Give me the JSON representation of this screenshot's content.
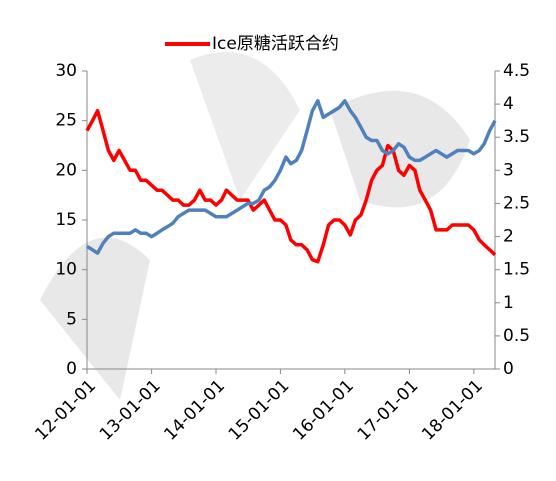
{
  "chart_data": {
    "type": "line",
    "legend": "top",
    "x": [
      "12-01-01",
      "12-02-01",
      "12-03-01",
      "12-04-01",
      "12-05-01",
      "12-06-01",
      "12-07-01",
      "12-08-01",
      "12-09-01",
      "12-10-01",
      "12-11-01",
      "12-12-01",
      "13-01-01",
      "13-02-01",
      "13-03-01",
      "13-04-01",
      "13-05-01",
      "13-06-01",
      "13-07-01",
      "13-08-01",
      "13-09-01",
      "13-10-01",
      "13-11-01",
      "13-12-01",
      "14-01-01",
      "14-02-01",
      "14-03-01",
      "14-04-01",
      "14-05-01",
      "14-06-01",
      "14-07-01",
      "14-08-01",
      "14-09-01",
      "14-10-01",
      "14-11-01",
      "14-12-01",
      "15-01-01",
      "15-02-01",
      "15-03-01",
      "15-04-01",
      "15-05-01",
      "15-06-01",
      "15-07-01",
      "15-08-01",
      "15-09-01",
      "15-10-01",
      "15-11-01",
      "15-12-01",
      "16-01-01",
      "16-02-01",
      "16-03-01",
      "16-04-01",
      "16-05-01",
      "16-06-01",
      "16-07-01",
      "16-08-01",
      "16-09-01",
      "16-10-01",
      "16-11-01",
      "16-12-01",
      "17-01-01",
      "17-02-01",
      "17-03-01",
      "17-04-01",
      "17-05-01",
      "17-06-01",
      "17-07-01",
      "17-08-01",
      "17-09-01",
      "17-10-01",
      "17-11-01",
      "17-12-01",
      "18-01-01",
      "18-02-01",
      "18-03-01",
      "18-04-01",
      "18-05-01"
    ],
    "xticks": [
      "12-01-01",
      "13-01-01",
      "14-01-01",
      "15-01-01",
      "16-01-01",
      "17-01-01",
      "18-01-01"
    ],
    "xlim": [
      "12-01-01",
      "18-05-01"
    ],
    "ylim": [
      0,
      30
    ],
    "yticks": [
      0,
      5,
      10,
      15,
      20,
      25,
      30
    ],
    "y2lim": [
      0,
      4.5
    ],
    "y2ticks": [
      0,
      0.5,
      1,
      1.5,
      2,
      2.5,
      3,
      3.5,
      4,
      4.5
    ],
    "series": [
      {
        "name": "Ice原糖活跃合约",
        "color": "#ff0000",
        "values": [
          24,
          25,
          26,
          24,
          22,
          21,
          22,
          21,
          20,
          20,
          19,
          19,
          18.5,
          18,
          18,
          17.5,
          17,
          17,
          16.5,
          16.5,
          17,
          18,
          17,
          17,
          16.5,
          17,
          18,
          17.5,
          17,
          17,
          17,
          16,
          16.5,
          17,
          16,
          15,
          15,
          14.5,
          13,
          12.5,
          12.5,
          12,
          11,
          10.8,
          12.5,
          14.5,
          15,
          15,
          14.5,
          13.5,
          15,
          15.5,
          17,
          19,
          20,
          20.5,
          22.5,
          22,
          20,
          19.5,
          20.5,
          20,
          18,
          17,
          16,
          14,
          14,
          14,
          14.5,
          14.5,
          14.5,
          14.5,
          14,
          13,
          12.5,
          12,
          11.5
        ]
      },
      {
        "color": "#4f81bd",
        "axis": "y2",
        "values": [
          1.85,
          1.8,
          1.75,
          1.9,
          2.0,
          2.05,
          2.05,
          2.05,
          2.05,
          2.1,
          2.05,
          2.05,
          2.0,
          2.05,
          2.1,
          2.15,
          2.2,
          2.3,
          2.35,
          2.4,
          2.4,
          2.4,
          2.4,
          2.35,
          2.3,
          2.3,
          2.3,
          2.35,
          2.4,
          2.45,
          2.5,
          2.5,
          2.55,
          2.7,
          2.75,
          2.85,
          3.0,
          3.2,
          3.1,
          3.15,
          3.3,
          3.6,
          3.9,
          4.05,
          3.8,
          3.85,
          3.9,
          3.95,
          4.05,
          3.9,
          3.8,
          3.65,
          3.5,
          3.45,
          3.45,
          3.3,
          3.25,
          3.3,
          3.4,
          3.35,
          3.2,
          3.15,
          3.15,
          3.2,
          3.25,
          3.3,
          3.25,
          3.2,
          3.25,
          3.3,
          3.3,
          3.3,
          3.25,
          3.3,
          3.4,
          3.6,
          3.75
        ]
      }
    ]
  }
}
